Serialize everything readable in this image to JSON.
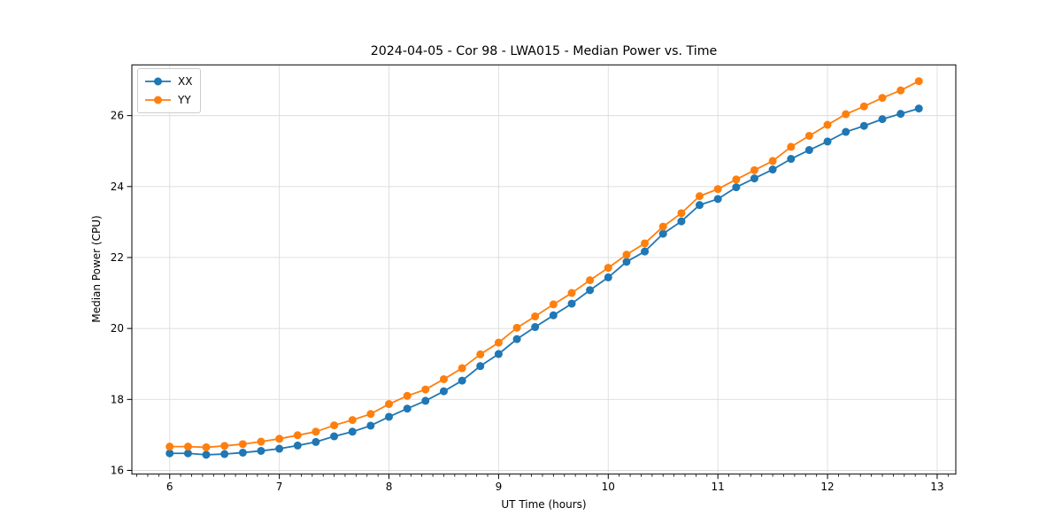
{
  "figure": {
    "background": "#ffffff",
    "plot_background": "#ffffff",
    "spine_color": "#000000",
    "grid_color": "#dcdcdc",
    "text_color": "#000000"
  },
  "chart_data": {
    "type": "line",
    "title": "2024-04-05 - Cor 98 - LWA015 - Median Power vs. Time",
    "xlabel": "UT Time (hours)",
    "ylabel": "Median Power (CPU)",
    "xlim": [
      5.655,
      13.17
    ],
    "ylim": [
      15.895,
      27.43
    ],
    "xticks": [
      6,
      7,
      8,
      9,
      10,
      11,
      12,
      13
    ],
    "yticks": [
      16,
      18,
      20,
      22,
      24,
      26
    ],
    "x_minor_tick_step": 0.1,
    "grid": true,
    "legend_position": "upper-left",
    "marker": "circle",
    "x": [
      6.0,
      6.167,
      6.333,
      6.5,
      6.667,
      6.833,
      7.0,
      7.167,
      7.333,
      7.5,
      7.667,
      7.833,
      8.0,
      8.167,
      8.333,
      8.5,
      8.667,
      8.833,
      9.0,
      9.167,
      9.333,
      9.5,
      9.667,
      9.833,
      10.0,
      10.167,
      10.333,
      10.5,
      10.667,
      10.833,
      11.0,
      11.167,
      11.333,
      11.5,
      11.667,
      11.833,
      12.0,
      12.167,
      12.333,
      12.5,
      12.667,
      12.833
    ],
    "series": [
      {
        "name": "XX",
        "color": "#1f77b4",
        "values": [
          16.48,
          16.48,
          16.44,
          16.46,
          16.5,
          16.55,
          16.61,
          16.7,
          16.8,
          16.96,
          17.09,
          17.26,
          17.51,
          17.74,
          17.96,
          18.23,
          18.53,
          18.94,
          19.28,
          19.7,
          20.04,
          20.37,
          20.7,
          21.08,
          21.44,
          21.88,
          22.17,
          22.67,
          23.02,
          23.48,
          23.65,
          23.98,
          24.23,
          24.48,
          24.78,
          25.03,
          25.27,
          25.54,
          25.71,
          25.9,
          26.05,
          26.2
        ]
      },
      {
        "name": "YY",
        "color": "#ff7f0e",
        "values": [
          16.67,
          16.67,
          16.65,
          16.69,
          16.74,
          16.81,
          16.89,
          16.99,
          17.09,
          17.27,
          17.42,
          17.59,
          17.87,
          18.1,
          18.28,
          18.57,
          18.88,
          19.27,
          19.6,
          20.02,
          20.34,
          20.68,
          21.0,
          21.36,
          21.71,
          22.08,
          22.4,
          22.87,
          23.25,
          23.73,
          23.93,
          24.2,
          24.46,
          24.72,
          25.12,
          25.43,
          25.74,
          26.04,
          26.26,
          26.5,
          26.71,
          26.97
        ]
      }
    ]
  }
}
